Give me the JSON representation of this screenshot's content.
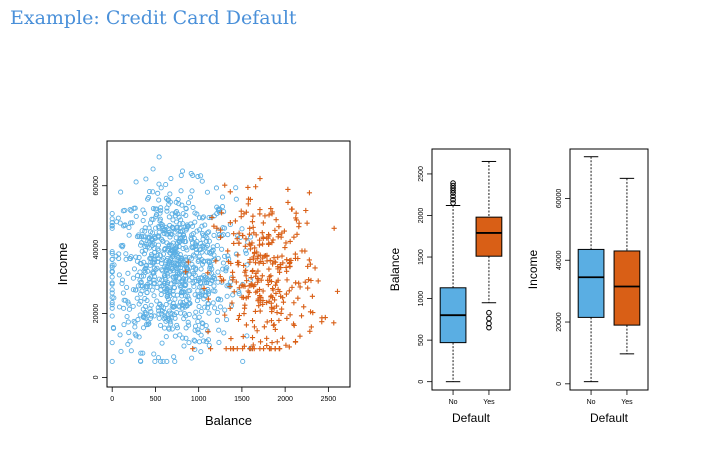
{
  "slide": {
    "title": "Example: Credit Card Default"
  },
  "colors": {
    "no": "#5aaee3",
    "yes": "#d95f16",
    "title": "#4a90d9"
  },
  "chart_data": [
    {
      "type": "scatter",
      "xlabel": "Balance",
      "ylabel": "Income",
      "xlim": [
        -60,
        2750
      ],
      "ylim": [
        -3000,
        74000
      ],
      "xticks": [
        0,
        500,
        1000,
        1500,
        2000,
        2500
      ],
      "yticks": [
        0,
        20000,
        40000,
        60000
      ],
      "grid": false,
      "series": [
        {
          "marker": "open-circle",
          "color": "#5aaee3",
          "x_range": [
            0,
            1600
          ],
          "y_range": [
            5000,
            69000
          ]
        },
        {
          "marker": "plus",
          "color": "#d95f16",
          "x_range": [
            850,
            2650
          ],
          "y_range": [
            9000,
            66000
          ]
        }
      ]
    },
    {
      "type": "box",
      "xlabel": "Default",
      "ylabel": "Balance",
      "categories": [
        "No",
        "Yes"
      ],
      "ylim": [
        -100,
        2800
      ],
      "yticks": [
        0,
        500,
        1000,
        1500,
        2000,
        2500
      ],
      "boxes": [
        {
          "whisker_low": 0,
          "q1": 470,
          "median": 800,
          "q3": 1130,
          "whisker_high": 2120,
          "outliers": [
            2150,
            2190,
            2230,
            2270,
            2300,
            2330,
            2360,
            2390
          ],
          "color": "#5aaee3"
        },
        {
          "whisker_low": 950,
          "q1": 1510,
          "median": 1790,
          "q3": 1980,
          "whisker_high": 2650,
          "outliers": [
            650,
            700,
            760,
            830
          ],
          "color": "#d95f16"
        }
      ]
    },
    {
      "type": "box",
      "xlabel": "Default",
      "ylabel": "Income",
      "categories": [
        "No",
        "Yes"
      ],
      "ylim": [
        -2000,
        76000
      ],
      "yticks": [
        0,
        20000,
        40000,
        60000
      ],
      "boxes": [
        {
          "whisker_low": 700,
          "q1": 21500,
          "median": 34500,
          "q3": 43500,
          "whisker_high": 73500,
          "outliers": [],
          "color": "#5aaee3"
        },
        {
          "whisker_low": 9700,
          "q1": 19000,
          "median": 31500,
          "q3": 43000,
          "whisker_high": 66500,
          "outliers": [],
          "color": "#d95f16"
        }
      ]
    }
  ]
}
